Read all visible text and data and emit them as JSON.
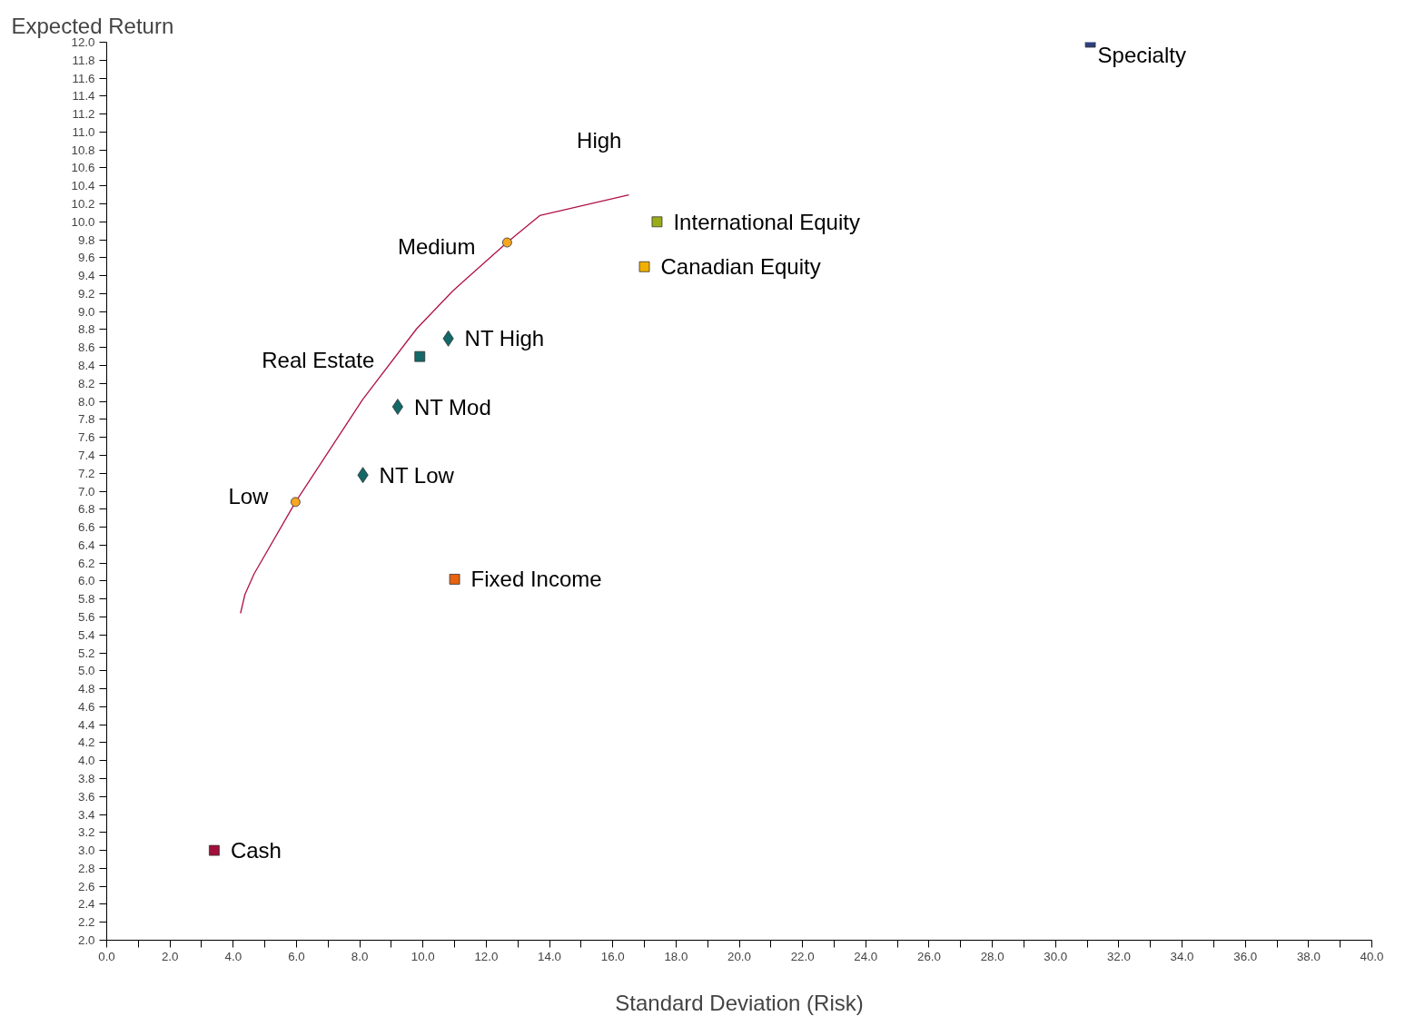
{
  "chart_data": {
    "type": "scatter",
    "xlabel": "Standard Deviation (Risk)",
    "ylabel": "Expected Return",
    "xlim": [
      0,
      40
    ],
    "ylim": [
      2,
      12
    ],
    "xticks": [
      {
        "value": 0,
        "label": "0.0"
      },
      {
        "value": 1,
        "label": null
      },
      {
        "value": 2,
        "label": "2.0"
      },
      {
        "value": 3,
        "label": null
      },
      {
        "value": 4,
        "label": "4.0"
      },
      {
        "value": 5,
        "label": null
      },
      {
        "value": 6,
        "label": "6.0"
      },
      {
        "value": 7,
        "label": null
      },
      {
        "value": 8,
        "label": "8.0"
      },
      {
        "value": 9,
        "label": null
      },
      {
        "value": 10,
        "label": "10.0"
      },
      {
        "value": 11,
        "label": null
      },
      {
        "value": 12,
        "label": "12.0"
      },
      {
        "value": 13,
        "label": null
      },
      {
        "value": 14,
        "label": "14.0"
      },
      {
        "value": 15,
        "label": null
      },
      {
        "value": 16,
        "label": "16.0"
      },
      {
        "value": 17,
        "label": null
      },
      {
        "value": 18,
        "label": "18.0"
      },
      {
        "value": 19,
        "label": null
      },
      {
        "value": 20,
        "label": "20.0"
      },
      {
        "value": 21,
        "label": null
      },
      {
        "value": 22,
        "label": "22.0"
      },
      {
        "value": 23,
        "label": null
      },
      {
        "value": 24,
        "label": "24.0"
      },
      {
        "value": 25,
        "label": null
      },
      {
        "value": 26,
        "label": "26.0"
      },
      {
        "value": 27,
        "label": null
      },
      {
        "value": 28,
        "label": "28.0"
      },
      {
        "value": 29,
        "label": null
      },
      {
        "value": 30,
        "label": "30.0"
      },
      {
        "value": 31,
        "label": null
      },
      {
        "value": 32,
        "label": "32.0"
      },
      {
        "value": 33,
        "label": null
      },
      {
        "value": 34,
        "label": "34.0"
      },
      {
        "value": 35,
        "label": null
      },
      {
        "value": 36,
        "label": "36.0"
      },
      {
        "value": 37,
        "label": null
      },
      {
        "value": 38,
        "label": "38.0"
      },
      {
        "value": 39,
        "label": null
      },
      {
        "value": 40,
        "label": "40.0"
      }
    ],
    "yticks": [
      {
        "value": 2.0,
        "label": "2.0"
      },
      {
        "value": 2.2,
        "label": "2.2"
      },
      {
        "value": 2.4,
        "label": "2.4"
      },
      {
        "value": 2.6,
        "label": "2.6"
      },
      {
        "value": 2.8,
        "label": "2.8"
      },
      {
        "value": 3.0,
        "label": "3.0"
      },
      {
        "value": 3.2,
        "label": "3.2"
      },
      {
        "value": 3.4,
        "label": "3.4"
      },
      {
        "value": 3.6,
        "label": "3.6"
      },
      {
        "value": 3.8,
        "label": "3.8"
      },
      {
        "value": 4.0,
        "label": "4.0"
      },
      {
        "value": 4.2,
        "label": "4.2"
      },
      {
        "value": 4.4,
        "label": "4.4"
      },
      {
        "value": 4.6,
        "label": "4.6"
      },
      {
        "value": 4.8,
        "label": "4.8"
      },
      {
        "value": 5.0,
        "label": "5.0"
      },
      {
        "value": 5.2,
        "label": "5.2"
      },
      {
        "value": 5.4,
        "label": "5.4"
      },
      {
        "value": 5.6,
        "label": "5.6"
      },
      {
        "value": 5.8,
        "label": "5.8"
      },
      {
        "value": 6.0,
        "label": "6.0"
      },
      {
        "value": 6.2,
        "label": "6.2"
      },
      {
        "value": 6.4,
        "label": "6.4"
      },
      {
        "value": 6.6,
        "label": "6.6"
      },
      {
        "value": 6.8,
        "label": "6.8"
      },
      {
        "value": 7.0,
        "label": "7.0"
      },
      {
        "value": 7.2,
        "label": "7.2"
      },
      {
        "value": 7.4,
        "label": "7.4"
      },
      {
        "value": 7.6,
        "label": "7.6"
      },
      {
        "value": 7.8,
        "label": "7.8"
      },
      {
        "value": 8.0,
        "label": "8.0"
      },
      {
        "value": 8.2,
        "label": "8.2"
      },
      {
        "value": 8.4,
        "label": "8.4"
      },
      {
        "value": 8.6,
        "label": "8.6"
      },
      {
        "value": 8.8,
        "label": "8.8"
      },
      {
        "value": 9.0,
        "label": "9.0"
      },
      {
        "value": 9.2,
        "label": "9.2"
      },
      {
        "value": 9.4,
        "label": "9.4"
      },
      {
        "value": 9.6,
        "label": "9.6"
      },
      {
        "value": 9.8,
        "label": "9.8"
      },
      {
        "value": 10.0,
        "label": "10.0"
      },
      {
        "value": 10.2,
        "label": "10.2"
      },
      {
        "value": 10.4,
        "label": "10.4"
      },
      {
        "value": 10.6,
        "label": "10.6"
      },
      {
        "value": 10.8,
        "label": "10.8"
      },
      {
        "value": 11.0,
        "label": "11.0"
      },
      {
        "value": 11.2,
        "label": "11.2"
      },
      {
        "value": 11.4,
        "label": "11.4"
      },
      {
        "value": 11.6,
        "label": "11.6"
      },
      {
        "value": 11.8,
        "label": "11.8"
      },
      {
        "value": 12.0,
        "label": "12.0"
      }
    ],
    "grid": false,
    "series": [
      {
        "name": "Specialty",
        "type": "scatter",
        "marker": "square",
        "color": "#2e3f7f",
        "x": [
          31.1
        ],
        "values": [
          12.0
        ]
      },
      {
        "name": "International Equity",
        "type": "scatter",
        "marker": "square",
        "color": "#9aab1a",
        "x": [
          17.4
        ],
        "values": [
          10.0
        ]
      },
      {
        "name": "Canadian Equity",
        "type": "scatter",
        "marker": "square",
        "color": "#f0b000",
        "x": [
          17.0
        ],
        "values": [
          9.5
        ]
      },
      {
        "name": "Real Estate",
        "type": "scatter",
        "marker": "square",
        "color": "#136868",
        "x": [
          9.9
        ],
        "values": [
          8.5
        ]
      },
      {
        "name": "NT High",
        "type": "scatter",
        "marker": "diamond",
        "color": "#136868",
        "x": [
          10.8
        ],
        "values": [
          8.7
        ]
      },
      {
        "name": "NT Mod",
        "type": "scatter",
        "marker": "diamond",
        "color": "#136868",
        "x": [
          9.2
        ],
        "values": [
          7.94
        ]
      },
      {
        "name": "NT Low",
        "type": "scatter",
        "marker": "diamond",
        "color": "#136868",
        "x": [
          8.1
        ],
        "values": [
          7.18
        ]
      },
      {
        "name": "Fixed Income",
        "type": "scatter",
        "marker": "square",
        "color": "#e8620f",
        "x": [
          11.0
        ],
        "values": [
          6.02
        ]
      },
      {
        "name": "Cash",
        "type": "scatter",
        "marker": "square",
        "color": "#a0103a",
        "x": [
          3.4
        ],
        "values": [
          3.0
        ]
      },
      {
        "type": "line",
        "line_style": "solid",
        "color": "#b0104a",
        "x": [
          4.23,
          4.37,
          4.66,
          5.97,
          8.09,
          9.8,
          10.94,
          12.66,
          13.69,
          16.51
        ],
        "values": [
          5.64,
          5.85,
          6.08,
          6.88,
          8.02,
          8.81,
          9.23,
          9.77,
          10.07,
          10.3
        ]
      },
      {
        "type": "scatter",
        "marker": "circle",
        "color": "#f5a623",
        "x": [
          5.97,
          12.66
        ],
        "values": [
          6.88,
          9.77
        ]
      }
    ],
    "annotations": [
      {
        "text": "Low",
        "x": 5.97,
        "y": 6.88
      },
      {
        "text": "Medium",
        "x": 12.66,
        "y": 9.77
      },
      {
        "text": "High",
        "x": 16.51,
        "y": 10.3
      }
    ]
  }
}
